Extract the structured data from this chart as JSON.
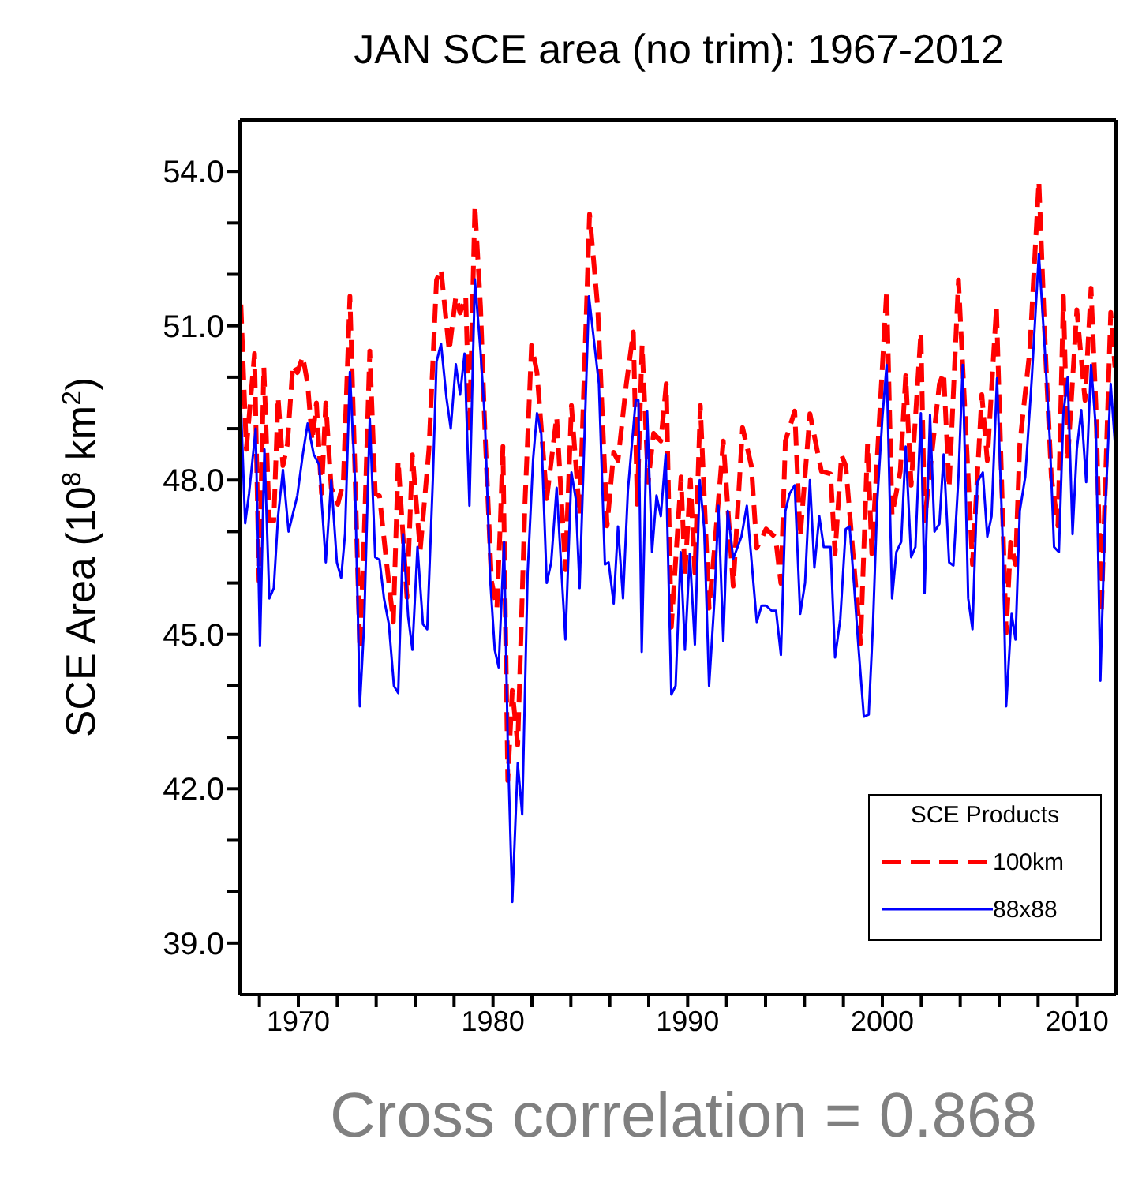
{
  "chart_data": {
    "type": "line",
    "title": "JAN SCE area (no trim): 1967-2012",
    "ylabel": "SCE Area (10$^{8}$ km$^{2}$)",
    "legend_title": "SCE Products",
    "legend": "bottom right",
    "annotations": [
      "Cross correlation = 0.868"
    ],
    "xlim": [
      1967,
      2012
    ],
    "ylim": [
      38,
      55
    ],
    "xticks": [
      {
        "value": 1968,
        "label": null
      },
      1970,
      {
        "value": 1972,
        "label": null
      },
      {
        "value": 1974,
        "label": null
      },
      {
        "value": 1976,
        "label": null
      },
      {
        "value": 1978,
        "label": null
      },
      1980,
      {
        "value": 1982,
        "label": null
      },
      {
        "value": 1984,
        "label": null
      },
      {
        "value": 1986,
        "label": null
      },
      {
        "value": 1988,
        "label": null
      },
      1990,
      {
        "value": 1992,
        "label": null
      },
      {
        "value": 1994,
        "label": null
      },
      {
        "value": 1996,
        "label": null
      },
      {
        "value": 1998,
        "label": null
      },
      2000,
      {
        "value": 2002,
        "label": null
      },
      {
        "value": 2004,
        "label": null
      },
      {
        "value": 2006,
        "label": null
      },
      {
        "value": 2008,
        "label": null
      },
      2010
    ],
    "yticks": [
      {
        "value": 39,
        "label": "39.0"
      },
      {
        "value": 40,
        "label": null
      },
      {
        "value": 41,
        "label": null
      },
      {
        "value": 42,
        "label": "42.0"
      },
      {
        "value": 43,
        "label": null
      },
      {
        "value": 44,
        "label": null
      },
      {
        "value": 45,
        "label": "45.0"
      },
      {
        "value": 46,
        "label": null
      },
      {
        "value": 47,
        "label": null
      },
      {
        "value": 48,
        "label": "48.0"
      },
      {
        "value": 49,
        "label": null
      },
      {
        "value": 50,
        "label": null
      },
      {
        "value": 51,
        "label": "51.0"
      },
      {
        "value": 52,
        "label": null
      },
      {
        "value": 53,
        "label": null
      },
      {
        "value": 54,
        "label": "54.0"
      }
    ],
    "series": [
      {
        "name": "100km",
        "color": "#ff0000",
        "line_style": "dashed",
        "x": [
          1967.05,
          1967.33,
          1967.75,
          1967.98,
          1968.23,
          1968.51,
          1968.74,
          1968.96,
          1969.21,
          1969.44,
          1969.72,
          1969.95,
          1970.23,
          1970.48,
          1970.71,
          1970.93,
          1971.19,
          1971.41,
          1971.69,
          1972.03,
          1972.31,
          1972.65,
          1972.91,
          1973.16,
          1973.38,
          1973.67,
          1973.95,
          1974.17,
          1974.51,
          1974.88,
          1975.13,
          1975.58,
          1975.86,
          1976.26,
          1976.71,
          1977.1,
          1977.33,
          1977.75,
          1978.09,
          1978.31,
          1978.6,
          1978.79,
          1979.07,
          1979.36,
          1979.58,
          1979.92,
          1980.2,
          1980.37,
          1980.51,
          1980.76,
          1980.99,
          1981.27,
          1981.64,
          1981.98,
          1982.26,
          1982.76,
          1983.27,
          1983.72,
          1984.03,
          1984.45,
          1984.96,
          1985.38,
          1985.86,
          1986.2,
          1986.42,
          1986.85,
          1987.21,
          1987.41,
          1987.66,
          1987.97,
          1988.25,
          1988.62,
          1988.9,
          1989.16,
          1989.66,
          1989.86,
          1990.14,
          1990.37,
          1990.65,
          1991.1,
          1991.38,
          1991.83,
          1992.34,
          1992.82,
          1993.27,
          1993.55,
          1994.03,
          1994.51,
          1994.79,
          1995.02,
          1995.5,
          1995.78,
          1996.28,
          1996.87,
          1997.34,
          1997.57,
          1997.9,
          1998.12,
          1998.88,
          1999.24,
          1999.46,
          2000.22,
          2000.5,
          2000.92,
          2001.2,
          2001.48,
          2001.98,
          2002.17,
          2002.93,
          2003.15,
          2003.43,
          2003.91,
          2004.63,
          2005.11,
          2005.39,
          2005.86,
          2006.36,
          2006.59,
          2006.84,
          2007.06,
          2007.57,
          2008.04,
          2008.4,
          2008.68,
          2009.02,
          2009.3,
          2009.52,
          2009.99,
          2010.41,
          2010.72,
          2010.97,
          2011.25,
          2011.73,
          2011.95
        ],
        "values": [
          51.41,
          48.6,
          50.46,
          46.04,
          50.19,
          47.21,
          47.21,
          49.61,
          48.28,
          48.7,
          50.24,
          50.09,
          50.4,
          49.87,
          48.76,
          49.5,
          47.74,
          49.5,
          47.85,
          47.53,
          47.96,
          51.57,
          48.17,
          44.71,
          46.89,
          50.51,
          47.74,
          47.69,
          46.47,
          45.24,
          48.38,
          45.72,
          48.49,
          46.63,
          48.6,
          51.89,
          52.1,
          50.51,
          51.57,
          51.25,
          51.57,
          48.91,
          53.33,
          51.36,
          49.02,
          46.04,
          45.51,
          47.11,
          48.65,
          42.16,
          43.91,
          42.85,
          47.53,
          50.62,
          50.09,
          47.64,
          49.23,
          46.26,
          49.45,
          47.32,
          53.17,
          51.36,
          47.11,
          48.54,
          48.38,
          49.87,
          50.88,
          47.53,
          50.62,
          47.96,
          48.91,
          48.76,
          49.87,
          45.14,
          48.06,
          46.15,
          48.01,
          46.2,
          49.45,
          45.51,
          46.68,
          48.76,
          45.94,
          49.02,
          48.28,
          46.68,
          47.05,
          46.89,
          45.99,
          48.76,
          49.34,
          46.89,
          49.29,
          48.17,
          48.12,
          46.57,
          48.49,
          48.28,
          44.82,
          48.7,
          46.57,
          51.68,
          47.32,
          48.17,
          50.03,
          47.9,
          50.88,
          47.21,
          49.87,
          50.09,
          47.85,
          51.89,
          46.36,
          49.66,
          48.38,
          51.36,
          45.03,
          46.79,
          46.36,
          48.7,
          50.51,
          53.81,
          50.3,
          48.06,
          47.11,
          51.57,
          48.38,
          51.31,
          49.55,
          51.73,
          49.45,
          45.4,
          51.26,
          50.19
        ]
      },
      {
        "name": "88x88",
        "color": "#0000ff",
        "line_style": "solid",
        "x": [
          1967.05,
          1967.27,
          1967.47,
          1967.81,
          1968.03,
          1968.26,
          1968.51,
          1968.74,
          1968.96,
          1969.21,
          1969.5,
          1969.95,
          1970.23,
          1970.48,
          1970.79,
          1971.07,
          1971.41,
          1971.69,
          1971.98,
          1972.2,
          1972.4,
          1972.65,
          1972.91,
          1973.16,
          1973.38,
          1973.67,
          1973.95,
          1974.17,
          1974.4,
          1974.65,
          1974.91,
          1975.13,
          1975.38,
          1975.64,
          1975.86,
          1976.12,
          1976.4,
          1976.62,
          1976.91,
          1977.1,
          1977.33,
          1977.61,
          1977.83,
          1978.09,
          1978.31,
          1978.54,
          1978.79,
          1979.07,
          1979.36,
          1979.58,
          1979.86,
          1980.09,
          1980.29,
          1980.57,
          1980.76,
          1980.99,
          1981.27,
          1981.5,
          1981.78,
          1982.06,
          1982.26,
          1982.48,
          1982.76,
          1982.99,
          1983.27,
          1983.72,
          1984.03,
          1984.25,
          1984.45,
          1984.93,
          1985.44,
          1985.75,
          1985.94,
          1986.2,
          1986.42,
          1986.68,
          1986.93,
          1987.33,
          1987.47,
          1987.64,
          1987.92,
          1988.17,
          1988.4,
          1988.62,
          1988.87,
          1989.16,
          1989.38,
          1989.64,
          1989.86,
          1990.11,
          1990.37,
          1990.62,
          1990.85,
          1991.1,
          1991.38,
          1991.58,
          1991.83,
          1992.06,
          1992.34,
          1992.76,
          1993.04,
          1993.55,
          1993.8,
          1994.03,
          1994.31,
          1994.54,
          1994.79,
          1995.02,
          1995.24,
          1995.5,
          1995.78,
          1996.03,
          1996.28,
          1996.51,
          1996.76,
          1996.99,
          1997.34,
          1997.57,
          1997.84,
          1998.12,
          1998.32,
          1998.54,
          1998.77,
          1999.05,
          1999.3,
          1999.52,
          1999.74,
          2000.0,
          2000.22,
          2000.5,
          2000.72,
          2000.97,
          2001.2,
          2001.48,
          2001.7,
          2001.98,
          2002.17,
          2002.45,
          2002.68,
          2002.93,
          2003.15,
          2003.43,
          2003.65,
          2003.91,
          2004.13,
          2004.41,
          2004.63,
          2004.88,
          2005.16,
          2005.39,
          2005.61,
          2005.89,
          2006.17,
          2006.36,
          2006.64,
          2006.84,
          2007.06,
          2007.34,
          2007.68,
          2008.04,
          2008.32,
          2008.6,
          2008.82,
          2009.07,
          2009.3,
          2009.52,
          2009.77,
          2009.99,
          2010.22,
          2010.47,
          2010.72,
          2010.97,
          2011.2,
          2011.45,
          2011.73,
          2011.95
        ],
        "values": [
          49.45,
          47.16,
          47.74,
          49.0,
          44.77,
          48.6,
          45.7,
          45.9,
          47.3,
          48.2,
          47.0,
          47.7,
          48.5,
          49.1,
          48.5,
          48.3,
          46.4,
          48.0,
          46.4,
          46.1,
          46.95,
          50.1,
          48.0,
          43.6,
          45.2,
          49.2,
          46.5,
          46.45,
          45.7,
          45.2,
          44.0,
          43.86,
          46.95,
          45.35,
          44.7,
          46.7,
          45.2,
          45.1,
          48.0,
          50.3,
          50.65,
          49.6,
          49.0,
          50.25,
          49.66,
          50.46,
          47.5,
          51.9,
          50.5,
          49.2,
          46.05,
          44.7,
          44.36,
          46.8,
          42.85,
          39.8,
          42.5,
          41.5,
          46.2,
          48.4,
          49.3,
          48.9,
          46.0,
          46.4,
          47.85,
          44.9,
          48.15,
          47.64,
          45.9,
          51.57,
          49.87,
          46.36,
          46.4,
          45.6,
          47.1,
          45.7,
          47.8,
          49.55,
          49.55,
          44.66,
          49.34,
          46.6,
          47.7,
          47.3,
          48.5,
          43.83,
          44.0,
          46.6,
          44.7,
          46.57,
          44.8,
          48.0,
          47.05,
          44.0,
          45.7,
          47.5,
          44.87,
          47.4,
          46.47,
          46.9,
          47.5,
          45.24,
          45.56,
          45.56,
          45.46,
          45.46,
          44.6,
          47.4,
          47.74,
          47.9,
          45.4,
          46.0,
          48.0,
          46.3,
          47.3,
          46.7,
          46.7,
          44.55,
          45.3,
          47.05,
          47.1,
          46.0,
          44.77,
          43.4,
          43.44,
          45.2,
          47.6,
          49.2,
          50.24,
          45.7,
          46.6,
          46.8,
          48.65,
          46.5,
          46.7,
          49.3,
          45.8,
          49.27,
          47.0,
          47.15,
          48.5,
          46.4,
          46.34,
          48.06,
          50.24,
          45.7,
          45.1,
          47.96,
          48.15,
          46.9,
          47.3,
          49.98,
          46.95,
          43.6,
          45.4,
          44.9,
          47.4,
          48.06,
          50.0,
          52.4,
          50.7,
          48.8,
          46.7,
          46.6,
          49.3,
          50.0,
          46.95,
          48.6,
          49.36,
          47.96,
          50.24,
          49.0,
          44.1,
          47.4,
          49.87,
          48.7
        ]
      }
    ]
  }
}
